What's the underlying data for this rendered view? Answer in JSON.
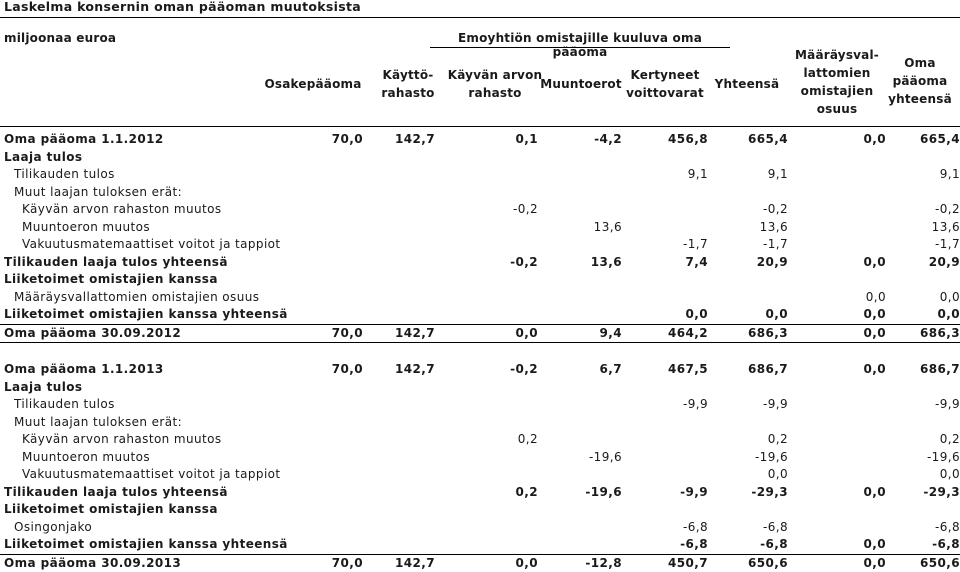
{
  "title": "Laskelma konsernin oman pääoman muutoksista",
  "header": {
    "unit": "miljoonaa euroa",
    "group": "Emoyhtiön omistajille kuuluva oma pääoma",
    "columns": [
      "Osakepääoma",
      "Käyttö-\nrahasto",
      "Käyvän arvon\nrahasto",
      "Muuntoerot",
      "Kertyneet\nvoittovarat",
      "Yhteensä",
      "Määräysval-\nlattomien\nomistajien\nosuus",
      "Oma\npääoma\nyhteensä"
    ]
  },
  "rows": [
    {
      "label": "Oma pääoma 1.1.2012",
      "style": "b",
      "values": [
        "70,0",
        "142,7",
        "0,1",
        "-4,2",
        "456,8",
        "665,4",
        "0,0",
        "665,4"
      ]
    },
    {
      "label": "Laaja tulos",
      "style": "b",
      "values": [
        "",
        "",
        "",
        "",
        "",
        "",
        "",
        ""
      ]
    },
    {
      "label": "Tilikauden tulos",
      "style": "l1",
      "values": [
        "",
        "",
        "",
        "",
        "9,1",
        "9,1",
        "",
        "9,1"
      ]
    },
    {
      "label": "Muut laajan tuloksen erät:",
      "style": "l1",
      "values": [
        "",
        "",
        "",
        "",
        "",
        "",
        "",
        ""
      ]
    },
    {
      "label": "Käyvän arvon rahaston muutos",
      "style": "l2",
      "values": [
        "",
        "",
        "-0,2",
        "",
        "",
        "-0,2",
        "",
        "-0,2"
      ]
    },
    {
      "label": "Muuntoeron muutos",
      "style": "l2",
      "values": [
        "",
        "",
        "",
        "13,6",
        "",
        "13,6",
        "",
        "13,6"
      ]
    },
    {
      "label": "Vakuutusmatemaattiset voitot ja tappiot",
      "style": "l2",
      "values": [
        "",
        "",
        "",
        "",
        "-1,7",
        "-1,7",
        "",
        "-1,7"
      ]
    },
    {
      "label": "Tilikauden laaja tulos yhteensä",
      "style": "b",
      "values": [
        "",
        "",
        "-0,2",
        "13,6",
        "7,4",
        "20,9",
        "0,0",
        "20,9"
      ]
    },
    {
      "label": "Liiketoimet omistajien kanssa",
      "style": "b",
      "values": [
        "",
        "",
        "",
        "",
        "",
        "",
        "",
        ""
      ]
    },
    {
      "label": "Määräysvallattomien omistajien osuus",
      "style": "l1",
      "values": [
        "",
        "",
        "",
        "",
        "",
        "",
        "0,0",
        "0,0"
      ]
    },
    {
      "label": "Liiketoimet omistajien kanssa yhteensä",
      "style": "b under",
      "values": [
        "",
        "",
        "",
        "",
        "0,0",
        "0,0",
        "0,0",
        "0,0"
      ]
    },
    {
      "label": "Oma pääoma 30.09.2012",
      "style": "b under",
      "values": [
        "70,0",
        "142,7",
        "0,0",
        "9,4",
        "464,2",
        "686,3",
        "0,0",
        "686,3"
      ]
    },
    {
      "label": "",
      "style": "gap",
      "values": [
        "",
        "",
        "",
        "",
        "",
        "",
        "",
        ""
      ]
    },
    {
      "label": "Oma pääoma 1.1.2013",
      "style": "b",
      "values": [
        "70,0",
        "142,7",
        "-0,2",
        "6,7",
        "467,5",
        "686,7",
        "0,0",
        "686,7"
      ]
    },
    {
      "label": "Laaja tulos",
      "style": "b",
      "values": [
        "",
        "",
        "",
        "",
        "",
        "",
        "",
        ""
      ]
    },
    {
      "label": "Tilikauden tulos",
      "style": "l1",
      "values": [
        "",
        "",
        "",
        "",
        "-9,9",
        "-9,9",
        "",
        "-9,9"
      ]
    },
    {
      "label": "Muut laajan tuloksen erät:",
      "style": "l1",
      "values": [
        "",
        "",
        "",
        "",
        "",
        "",
        "",
        ""
      ]
    },
    {
      "label": "Käyvän arvon rahaston muutos",
      "style": "l2",
      "values": [
        "",
        "",
        "0,2",
        "",
        "",
        "0,2",
        "",
        "0,2"
      ]
    },
    {
      "label": "Muuntoeron muutos",
      "style": "l2",
      "values": [
        "",
        "",
        "",
        "-19,6",
        "",
        "-19,6",
        "",
        "-19,6"
      ]
    },
    {
      "label": "Vakuutusmatemaattiset voitot ja tappiot",
      "style": "l2",
      "values": [
        "",
        "",
        "",
        "",
        "",
        "0,0",
        "",
        "0,0"
      ]
    },
    {
      "label": "Tilikauden laaja tulos yhteensä",
      "style": "b",
      "values": [
        "",
        "",
        "0,2",
        "-19,6",
        "-9,9",
        "-29,3",
        "0,0",
        "-29,3"
      ]
    },
    {
      "label": "Liiketoimet omistajien kanssa",
      "style": "b",
      "values": [
        "",
        "",
        "",
        "",
        "",
        "",
        "",
        ""
      ]
    },
    {
      "label": "Osingonjako",
      "style": "l1",
      "values": [
        "",
        "",
        "",
        "",
        "-6,8",
        "-6,8",
        "",
        "-6,8"
      ]
    },
    {
      "label": "Liiketoimet omistajien kanssa yhteensä",
      "style": "b under",
      "values": [
        "",
        "",
        "",
        "",
        "-6,8",
        "-6,8",
        "0,0",
        "-6,8"
      ]
    },
    {
      "label": "Oma pääoma 30.09.2013",
      "style": "b",
      "values": [
        "70,0",
        "142,7",
        "0,0",
        "-12,8",
        "450,7",
        "650,6",
        "0,0",
        "650,6"
      ]
    }
  ]
}
